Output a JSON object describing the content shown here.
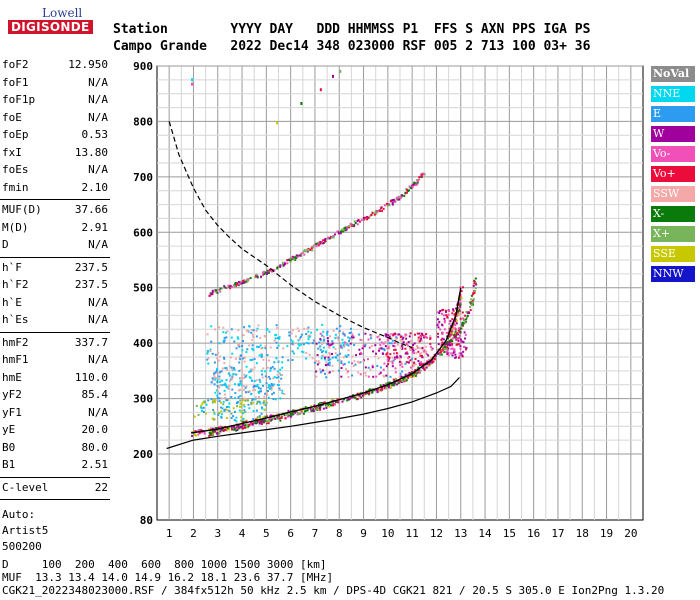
{
  "logo": {
    "top": "Lowell",
    "main": "DIGISONDE"
  },
  "header": {
    "line1": "Station        YYYY DAY   DDD HHMMSS P1  FFS S AXN PPS IGA PS",
    "line2": "Campo Grande   2022 Dec14 348 023000 RSF 005 2 713 100 03+ 36"
  },
  "params": {
    "group1": [
      [
        "foF2",
        "12.950"
      ],
      [
        "foF1",
        "N/A"
      ],
      [
        "foF1p",
        "N/A"
      ],
      [
        "foE",
        "N/A"
      ],
      [
        "foEp",
        "0.53"
      ],
      [
        "fxI",
        "13.80"
      ],
      [
        "foEs",
        "N/A"
      ],
      [
        "fmin",
        "2.10"
      ]
    ],
    "group2": [
      [
        "MUF(D)",
        "37.66"
      ],
      [
        "M(D)",
        "2.91"
      ],
      [
        "D",
        "N/A"
      ]
    ],
    "group3": [
      [
        "h`F",
        "237.5"
      ],
      [
        "h`F2",
        "237.5"
      ],
      [
        "h`E",
        "N/A"
      ],
      [
        "h`Es",
        "N/A"
      ]
    ],
    "group4": [
      [
        "hmF2",
        "337.7"
      ],
      [
        "hmF1",
        "N/A"
      ],
      [
        "hmE",
        "110.0"
      ],
      [
        "yF2",
        "85.4"
      ],
      [
        "yF1",
        "N/A"
      ],
      [
        "yE",
        "20.0"
      ],
      [
        "B0",
        "80.0"
      ],
      [
        "B1",
        "2.51"
      ]
    ],
    "group5": [
      [
        "C-level",
        "22"
      ]
    ],
    "auto": [
      "Auto:",
      "Artist5",
      "500200"
    ]
  },
  "legend": [
    {
      "label": "NoVal",
      "color": "#8c8c8c"
    },
    {
      "label": "NNE",
      "color": "#00d8f0"
    },
    {
      "label": "E",
      "color": "#2d9cf0"
    },
    {
      "label": "W",
      "color": "#a0009c"
    },
    {
      "label": "Vo-",
      "color": "#f050b8"
    },
    {
      "label": "Vo+",
      "color": "#ec0c3c"
    },
    {
      "label": "SSW",
      "color": "#f4a8a8"
    },
    {
      "label": "X-",
      "color": "#0a7a0a"
    },
    {
      "label": "X+",
      "color": "#78b45a"
    },
    {
      "label": "SSE",
      "color": "#c8c800"
    },
    {
      "label": "NNW",
      "color": "#1414c8"
    }
  ],
  "footer": {
    "line1": "D     100  200  400  600  800 1000 1500 3000 [km]",
    "line2": "MUF  13.3 13.4 14.0 14.9 16.2 18.1 23.6 37.7 [MHz]",
    "line3": "CGK21_2022348023000.RSF / 384fx512h 50 kHz 2.5 km / DPS-4D CGK21 821 / 20.5 S 305.0 E Ion2Png 1.3.20"
  },
  "chart_data": {
    "type": "scatter",
    "xlim": [
      1,
      20
    ],
    "ylim": [
      80,
      900
    ],
    "xticks": [
      1,
      2,
      3,
      4,
      5,
      6,
      7,
      8,
      9,
      10,
      11,
      12,
      13,
      14,
      15,
      16,
      17,
      18,
      19,
      20
    ],
    "yticks": [
      80,
      200,
      300,
      400,
      500,
      600,
      700,
      800,
      900
    ],
    "grid": true,
    "legend_position": "right",
    "trace_o": [
      [
        1.9,
        238
      ],
      [
        3,
        245
      ],
      [
        4,
        255
      ],
      [
        5,
        265
      ],
      [
        6,
        276
      ],
      [
        7,
        286
      ],
      [
        8,
        298
      ],
      [
        9,
        310
      ],
      [
        10,
        325
      ],
      [
        11,
        345
      ],
      [
        11.8,
        370
      ],
      [
        12.4,
        405
      ],
      [
        12.8,
        450
      ],
      [
        13,
        500
      ]
    ],
    "trace_x": [
      [
        2.6,
        238
      ],
      [
        3.6,
        248
      ],
      [
        4.6,
        258
      ],
      [
        5.6,
        268
      ],
      [
        6.6,
        280
      ],
      [
        7.6,
        292
      ],
      [
        8.6,
        305
      ],
      [
        9.6,
        320
      ],
      [
        10.6,
        338
      ],
      [
        11.6,
        362
      ],
      [
        12.4,
        395
      ],
      [
        13,
        430
      ],
      [
        13.4,
        470
      ],
      [
        13.6,
        520
      ]
    ],
    "second_hop": [
      [
        2.6,
        490
      ],
      [
        3.5,
        505
      ],
      [
        4.5,
        520
      ],
      [
        5.5,
        540
      ],
      [
        6.5,
        565
      ],
      [
        7.5,
        590
      ],
      [
        8.5,
        615
      ],
      [
        9.5,
        638
      ],
      [
        10.3,
        660
      ],
      [
        11,
        685
      ],
      [
        11.5,
        710
      ]
    ],
    "profile": [
      [
        0.9,
        210
      ],
      [
        2,
        225
      ],
      [
        3,
        232
      ],
      [
        4,
        238
      ],
      [
        5,
        244
      ],
      [
        6,
        250
      ],
      [
        7,
        257
      ],
      [
        8,
        264
      ],
      [
        9,
        272
      ],
      [
        10,
        282
      ],
      [
        11,
        294
      ],
      [
        12,
        310
      ],
      [
        12.6,
        322
      ],
      [
        12.95,
        338
      ]
    ],
    "dashed_profile": [
      [
        1,
        800
      ],
      [
        1.4,
        740
      ],
      [
        2,
        680
      ],
      [
        2.5,
        640
      ],
      [
        3,
        612
      ],
      [
        3.5,
        590
      ],
      [
        4,
        570
      ],
      [
        5,
        540
      ],
      [
        6,
        505
      ],
      [
        7,
        475
      ],
      [
        8,
        450
      ],
      [
        9,
        428
      ],
      [
        10,
        410
      ],
      [
        10.5,
        400
      ],
      [
        11,
        392
      ]
    ],
    "points_top_nov": [
      [
        1.9,
        878
      ],
      [
        1.9,
        870
      ],
      [
        6.4,
        835
      ],
      [
        7.7,
        884
      ],
      [
        8,
        893
      ],
      [
        7.2,
        860
      ],
      [
        5.4,
        800
      ]
    ]
  }
}
